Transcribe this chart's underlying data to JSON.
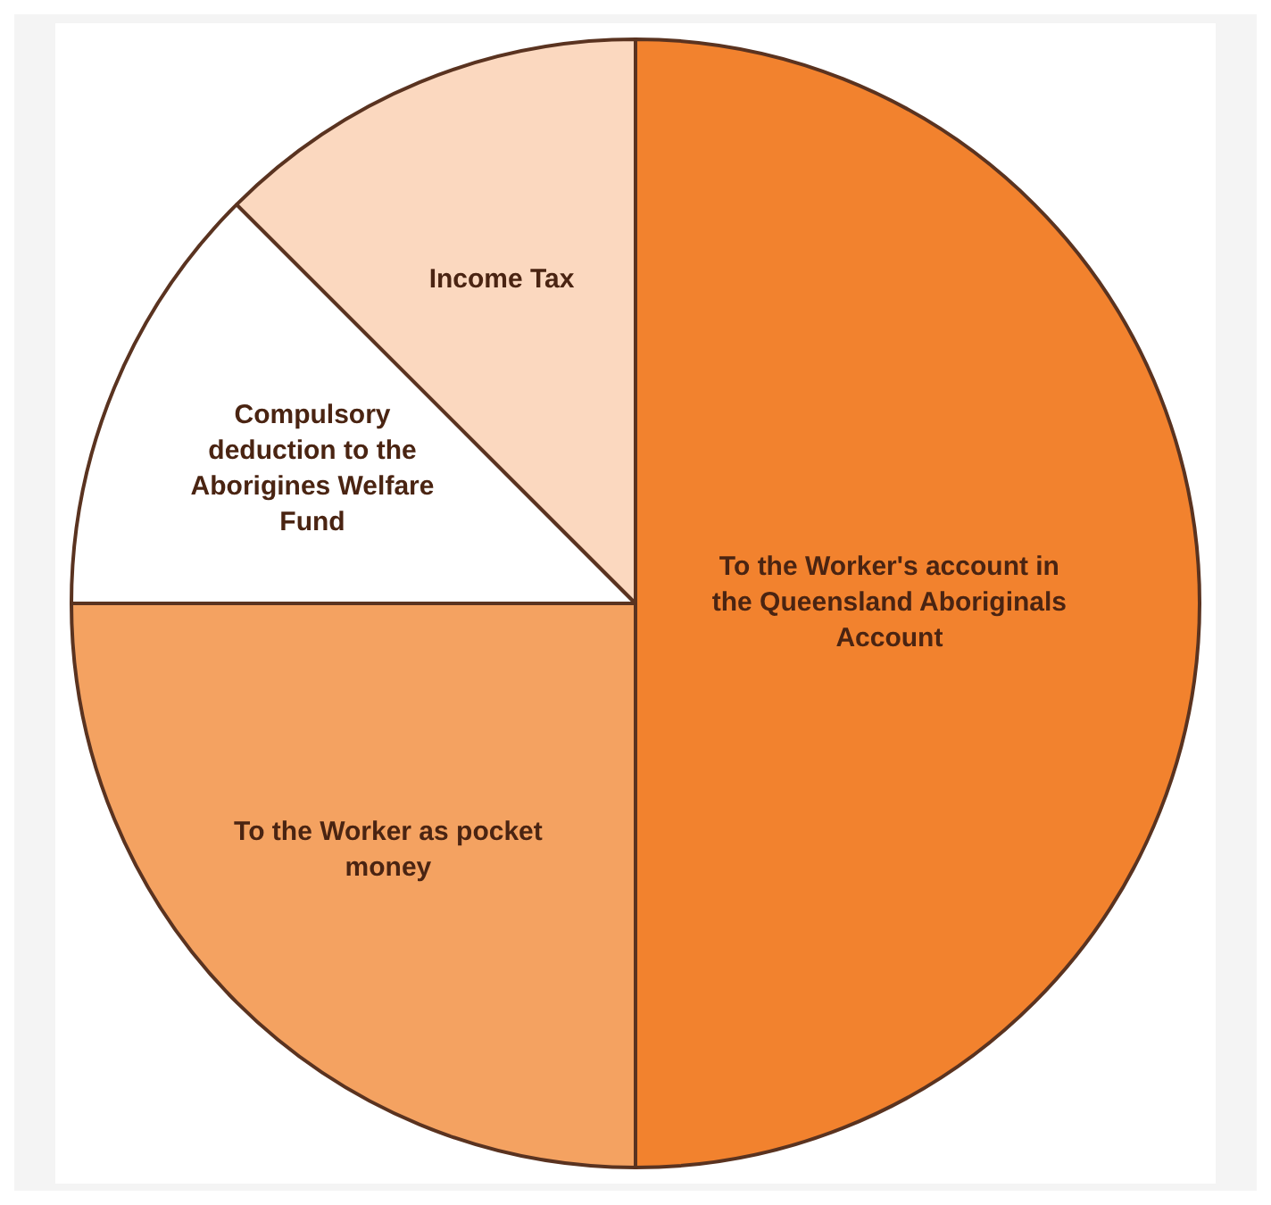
{
  "chart_data": {
    "type": "pie",
    "categories": [
      "To the Worker's account in the Queensland Aboriginals Account",
      "To the Worker as pocket money",
      "Compulsory deduction to the Aborigines Welfare Fund",
      "Income Tax"
    ],
    "values": [
      50,
      25,
      12.5,
      12.5
    ],
    "colors": [
      "#f2822e",
      "#f4a261",
      "#ffffff",
      "#fbd8bf"
    ],
    "legend": false
  }
}
